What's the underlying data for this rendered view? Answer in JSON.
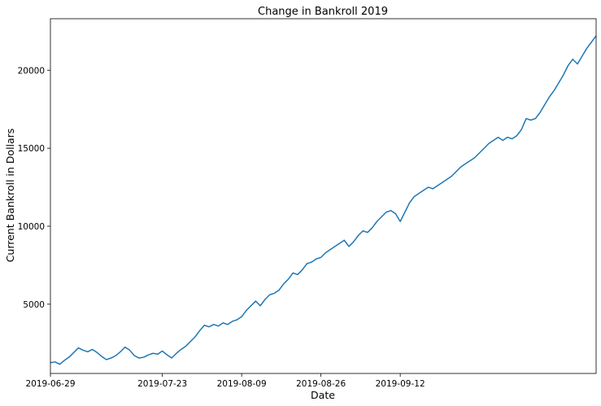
{
  "chart_data": {
    "type": "line",
    "title": "Change in Bankroll 2019",
    "xlabel": "Date",
    "ylabel": "Current Bankroll in Dollars",
    "xlim": [
      "2019-06-29",
      "2019-10-24"
    ],
    "ylim": [
      560,
      23300
    ],
    "x_ticks": [
      "2019-06-29",
      "2019-07-23",
      "2019-08-09",
      "2019-08-26",
      "2019-09-12"
    ],
    "y_ticks": [
      5000,
      10000,
      15000,
      20000
    ],
    "grid": false,
    "line_color": "#1f77b4",
    "series": [
      {
        "x": [
          "2019-06-29",
          "2019-06-30",
          "2019-07-01",
          "2019-07-02",
          "2019-07-03",
          "2019-07-04",
          "2019-07-05",
          "2019-07-06",
          "2019-07-07",
          "2019-07-08",
          "2019-07-09",
          "2019-07-10",
          "2019-07-11",
          "2019-07-12",
          "2019-07-13",
          "2019-07-14",
          "2019-07-15",
          "2019-07-16",
          "2019-07-17",
          "2019-07-18",
          "2019-07-19",
          "2019-07-20",
          "2019-07-21",
          "2019-07-22",
          "2019-07-23",
          "2019-07-24",
          "2019-07-25",
          "2019-07-26",
          "2019-07-27",
          "2019-07-28",
          "2019-07-29",
          "2019-07-30",
          "2019-07-31",
          "2019-08-01",
          "2019-08-02",
          "2019-08-03",
          "2019-08-04",
          "2019-08-05",
          "2019-08-06",
          "2019-08-07",
          "2019-08-08",
          "2019-08-09",
          "2019-08-10",
          "2019-08-11",
          "2019-08-12",
          "2019-08-13",
          "2019-08-14",
          "2019-08-15",
          "2019-08-16",
          "2019-08-17",
          "2019-08-18",
          "2019-08-19",
          "2019-08-20",
          "2019-08-21",
          "2019-08-22",
          "2019-08-23",
          "2019-08-24",
          "2019-08-25",
          "2019-08-26",
          "2019-08-27",
          "2019-08-28",
          "2019-08-29",
          "2019-08-30",
          "2019-08-31",
          "2019-09-01",
          "2019-09-02",
          "2019-09-03",
          "2019-09-04",
          "2019-09-05",
          "2019-09-06",
          "2019-09-07",
          "2019-09-08",
          "2019-09-09",
          "2019-09-10",
          "2019-09-11",
          "2019-09-12",
          "2019-09-13",
          "2019-09-14",
          "2019-09-15",
          "2019-09-16",
          "2019-09-17",
          "2019-09-18",
          "2019-09-19",
          "2019-09-20",
          "2019-09-21",
          "2019-09-22",
          "2019-09-23",
          "2019-09-24",
          "2019-09-25",
          "2019-09-26",
          "2019-09-27",
          "2019-09-28",
          "2019-09-29",
          "2019-09-30",
          "2019-10-01",
          "2019-10-02",
          "2019-10-03",
          "2019-10-04",
          "2019-10-05",
          "2019-10-06",
          "2019-10-07",
          "2019-10-08",
          "2019-10-09",
          "2019-10-10",
          "2019-10-11",
          "2019-10-12",
          "2019-10-13",
          "2019-10-14",
          "2019-10-15",
          "2019-10-16",
          "2019-10-17",
          "2019-10-18",
          "2019-10-19",
          "2019-10-20",
          "2019-10-21",
          "2019-10-22",
          "2019-10-23",
          "2019-10-24"
        ],
        "y": [
          1250,
          1300,
          1150,
          1400,
          1600,
          1900,
          2200,
          2050,
          1950,
          2100,
          1900,
          1650,
          1450,
          1550,
          1700,
          1950,
          2250,
          2050,
          1700,
          1550,
          1600,
          1750,
          1850,
          1800,
          2000,
          1750,
          1550,
          1850,
          2100,
          2300,
          2600,
          2900,
          3300,
          3650,
          3550,
          3700,
          3600,
          3800,
          3700,
          3900,
          4000,
          4200,
          4600,
          4900,
          5200,
          4900,
          5300,
          5600,
          5700,
          5900,
          6300,
          6600,
          7000,
          6900,
          7200,
          7600,
          7700,
          7900,
          8000,
          8300,
          8500,
          8700,
          8900,
          9100,
          8700,
          9000,
          9400,
          9700,
          9600,
          9900,
          10300,
          10600,
          10900,
          11000,
          10800,
          10300,
          10900,
          11500,
          11900,
          12100,
          12300,
          12500,
          12400,
          12600,
          12800,
          13000,
          13200,
          13500,
          13800,
          14000,
          14200,
          14400,
          14700,
          15000,
          15300,
          15500,
          15700,
          15500,
          15700,
          15600,
          15800,
          16200,
          16900,
          16800,
          16900,
          17300,
          17800,
          18300,
          18700,
          19200,
          19700,
          20300,
          20700,
          20400,
          20900,
          21400,
          21800,
          22200
        ]
      }
    ]
  }
}
